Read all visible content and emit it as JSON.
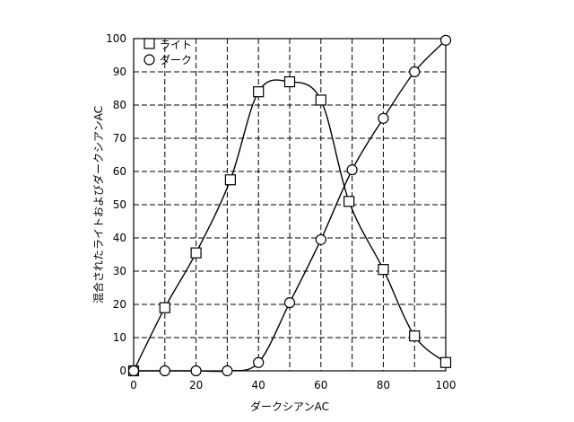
{
  "chart_data": {
    "type": "line",
    "xlabel": "ダークシアンAC",
    "ylabel": "混合されたライトおよびダークシアンAC",
    "xlim": [
      0,
      100
    ],
    "ylim": [
      0,
      100
    ],
    "x_ticks": [
      0,
      20,
      40,
      60,
      80,
      100
    ],
    "y_ticks": [
      0,
      10,
      20,
      30,
      40,
      50,
      60,
      70,
      80,
      90,
      100
    ],
    "grid": true,
    "legend_position": "top-left",
    "series": [
      {
        "name": "ライト",
        "marker": "square",
        "points": [
          [
            0,
            0
          ],
          [
            10,
            19
          ],
          [
            20,
            35.5
          ],
          [
            31,
            57.5
          ],
          [
            40,
            84
          ],
          [
            50,
            87
          ],
          [
            60,
            81.5
          ],
          [
            69,
            51
          ],
          [
            80,
            30.5
          ],
          [
            90,
            10.5
          ],
          [
            100,
            2.5
          ]
        ]
      },
      {
        "name": "ダーク",
        "marker": "circle",
        "points": [
          [
            0,
            0
          ],
          [
            10,
            0
          ],
          [
            20,
            0
          ],
          [
            30,
            0
          ],
          [
            40,
            2.5
          ],
          [
            50,
            20.5
          ],
          [
            60,
            39.5
          ],
          [
            70,
            60.5
          ],
          [
            80,
            76
          ],
          [
            90,
            90
          ],
          [
            100,
            99.5
          ]
        ]
      }
    ]
  }
}
